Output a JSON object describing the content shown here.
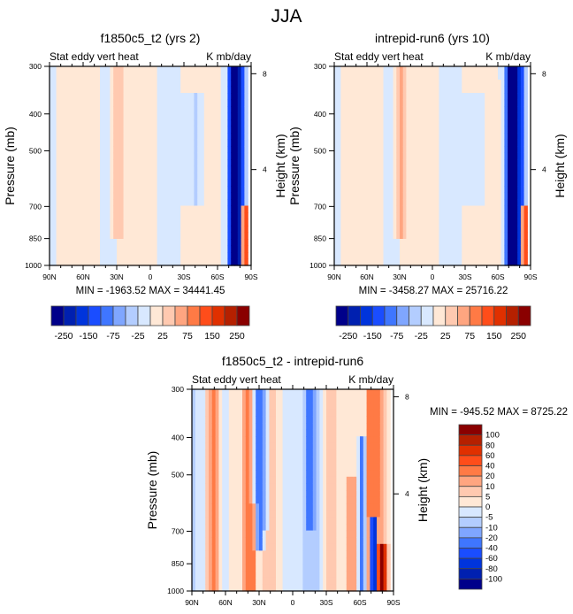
{
  "figure_title": "JJA",
  "palette": {
    "blues": [
      "#00008a",
      "#0020b0",
      "#0034dc",
      "#1a4dff",
      "#3f76ff",
      "#7fa6ff",
      "#b3cdff",
      "#d8e8ff"
    ],
    "reds": [
      "#ffe8d6",
      "#ffc9b0",
      "#ffa580",
      "#ff7a45",
      "#ff4d1a",
      "#e03000",
      "#b52000",
      "#8a0000"
    ],
    "missing": "#ffffff"
  },
  "chart_data": [
    {
      "id": "panel-1",
      "type": "heatmap",
      "title": "f1850c5_t2 (yrs 2)",
      "left_string": "Stat eddy vert heat",
      "right_string": "K mb/day",
      "xlabel": "",
      "ylabel": "Pressure (mb)",
      "y2label": "Height (km)",
      "x_ticks": [
        "90N",
        "60N",
        "30N",
        "0",
        "30S",
        "60S",
        "90S"
      ],
      "x_tick_values": [
        90,
        60,
        30,
        0,
        -30,
        -60,
        -90
      ],
      "y_ticks": [
        300,
        400,
        500,
        700,
        850,
        1000
      ],
      "y2_ticks": [
        8,
        4
      ],
      "xlim": [
        90,
        -90
      ],
      "ylim": [
        1000,
        300
      ],
      "y_scale": "log",
      "min_max_text": "MIN = -1963.52  MAX = 34441.45",
      "levels": [
        -250,
        -200,
        -150,
        -100,
        -75,
        -50,
        -25,
        0,
        25,
        50,
        75,
        100,
        150,
        200,
        250
      ],
      "colorbar_labels": [
        "-250",
        "-150",
        "-75",
        "-25",
        "25",
        "75",
        "150",
        "250"
      ],
      "colorbar_orientation": "horizontal",
      "features": [
        {
          "lat": 30,
          "width": 5,
          "p_top": 300,
          "p_bot": 850,
          "value": 45
        },
        {
          "lat": 62,
          "width": 14,
          "p_top": 300,
          "p_bot": 1000,
          "value": 12
        },
        {
          "lat": 10,
          "width": 8,
          "p_top": 300,
          "p_bot": 950,
          "value": 10
        },
        {
          "lat": -40,
          "width": 8,
          "p_top": 350,
          "p_bot": 700,
          "value": -30
        },
        {
          "lat": -55,
          "width": 7,
          "p_top": 320,
          "p_bot": 1000,
          "value": 15
        },
        {
          "lat": -75,
          "width": 4,
          "p_top": 300,
          "p_bot": 1000,
          "value": -400
        },
        {
          "lat": -80,
          "width": 5,
          "p_top": 300,
          "p_bot": 1000,
          "value": -120
        },
        {
          "lat": -84,
          "width": 2,
          "p_top": 700,
          "p_bot": 1000,
          "value": 300
        }
      ]
    },
    {
      "id": "panel-2",
      "type": "heatmap",
      "title": "intrepid-run6 (yrs 10)",
      "left_string": "Stat eddy vert heat",
      "right_string": "K mb/day",
      "xlabel": "",
      "ylabel": "Pressure (mb)",
      "y2label": "Height (km)",
      "x_ticks": [
        "90N",
        "60N",
        "30N",
        "0",
        "30S",
        "60S",
        "90S"
      ],
      "x_tick_values": [
        90,
        60,
        30,
        0,
        -30,
        -60,
        -90
      ],
      "y_ticks": [
        300,
        400,
        500,
        700,
        850,
        1000
      ],
      "y2_ticks": [
        8,
        4
      ],
      "xlim": [
        90,
        -90
      ],
      "ylim": [
        1000,
        300
      ],
      "y_scale": "log",
      "min_max_text": "MIN = -3458.27  MAX = 25716.22",
      "levels": [
        -250,
        -200,
        -150,
        -100,
        -75,
        -50,
        -25,
        0,
        25,
        50,
        75,
        100,
        150,
        200,
        250
      ],
      "colorbar_labels": [
        "-250",
        "-150",
        "-75",
        "-25",
        "25",
        "75",
        "150",
        "250"
      ],
      "colorbar_orientation": "horizontal",
      "features": [
        {
          "lat": 30,
          "width": 5,
          "p_top": 300,
          "p_bot": 850,
          "value": 55
        },
        {
          "lat": 60,
          "width": 12,
          "p_top": 300,
          "p_bot": 1000,
          "value": 12
        },
        {
          "lat": 5,
          "width": 8,
          "p_top": 300,
          "p_bot": 950,
          "value": 10
        },
        {
          "lat": -35,
          "width": 8,
          "p_top": 350,
          "p_bot": 700,
          "value": -30
        },
        {
          "lat": -58,
          "width": 6,
          "p_top": 330,
          "p_bot": 1000,
          "value": 15
        },
        {
          "lat": -74,
          "width": 5,
          "p_top": 300,
          "p_bot": 1000,
          "value": -400
        },
        {
          "lat": -82,
          "width": 4,
          "p_top": 300,
          "p_bot": 1000,
          "value": -100
        },
        {
          "lat": -84,
          "width": 2,
          "p_top": 700,
          "p_bot": 1000,
          "value": 300
        }
      ]
    },
    {
      "id": "panel-diff",
      "type": "heatmap",
      "title": "f1850c5_t2 - intrepid-run6",
      "left_string": "Stat eddy vert heat",
      "right_string": "K mb/day",
      "xlabel": "",
      "ylabel": "Pressure (mb)",
      "y2label": "Height (km)",
      "x_ticks": [
        "90N",
        "60N",
        "30N",
        "0",
        "30S",
        "60S",
        "90S"
      ],
      "x_tick_values": [
        90,
        60,
        30,
        0,
        -30,
        -60,
        -90
      ],
      "y_ticks": [
        300,
        400,
        500,
        700,
        850,
        1000
      ],
      "y2_ticks": [
        8,
        4
      ],
      "xlim": [
        90,
        -90
      ],
      "ylim": [
        1000,
        300
      ],
      "y_scale": "log",
      "min_max_text": "MIN = -945.52  MAX = 8725.22",
      "levels": [
        -100,
        -80,
        -60,
        -40,
        -20,
        -10,
        -5,
        0,
        5,
        10,
        20,
        40,
        60,
        80,
        100
      ],
      "colorbar_labels": [
        "100",
        "80",
        "60",
        "40",
        "20",
        "10",
        "5",
        "0",
        "-5",
        "-10",
        "-20",
        "-40",
        "-60",
        "-80",
        "-100"
      ],
      "colorbar_orientation": "vertical",
      "features": [
        {
          "lat": 70,
          "width": 4,
          "p_top": 300,
          "p_bot": 1000,
          "value": 25
        },
        {
          "lat": 80,
          "width": 3,
          "p_top": 300,
          "p_bot": 1000,
          "value": -8
        },
        {
          "lat": 40,
          "width": 5,
          "p_top": 300,
          "p_bot": 1000,
          "value": 35
        },
        {
          "lat": 30,
          "width": 4,
          "p_top": 300,
          "p_bot": 800,
          "value": -25
        },
        {
          "lat": 24,
          "width": 3,
          "p_top": 300,
          "p_bot": 700,
          "value": -15
        },
        {
          "lat": 35,
          "width": 3,
          "p_top": 600,
          "p_bot": 1000,
          "value": 20
        },
        {
          "lat": -15,
          "width": 3,
          "p_top": 300,
          "p_bot": 700,
          "value": -22
        },
        {
          "lat": 0,
          "width": 8,
          "p_top": 300,
          "p_bot": 1000,
          "value": -4
        },
        {
          "lat": -52,
          "width": 4,
          "p_top": 500,
          "p_bot": 1000,
          "value": 15
        },
        {
          "lat": -62,
          "width": 3,
          "p_top": 400,
          "p_bot": 1000,
          "value": -25
        },
        {
          "lat": -70,
          "width": 4,
          "p_top": 300,
          "p_bot": 1000,
          "value": 45
        },
        {
          "lat": -77,
          "width": 4,
          "p_top": 300,
          "p_bot": 1000,
          "value": 30
        },
        {
          "lat": -72,
          "width": 3,
          "p_top": 650,
          "p_bot": 1000,
          "value": -120
        },
        {
          "lat": -80,
          "width": 3,
          "p_top": 750,
          "p_bot": 1000,
          "value": 150
        }
      ]
    }
  ]
}
